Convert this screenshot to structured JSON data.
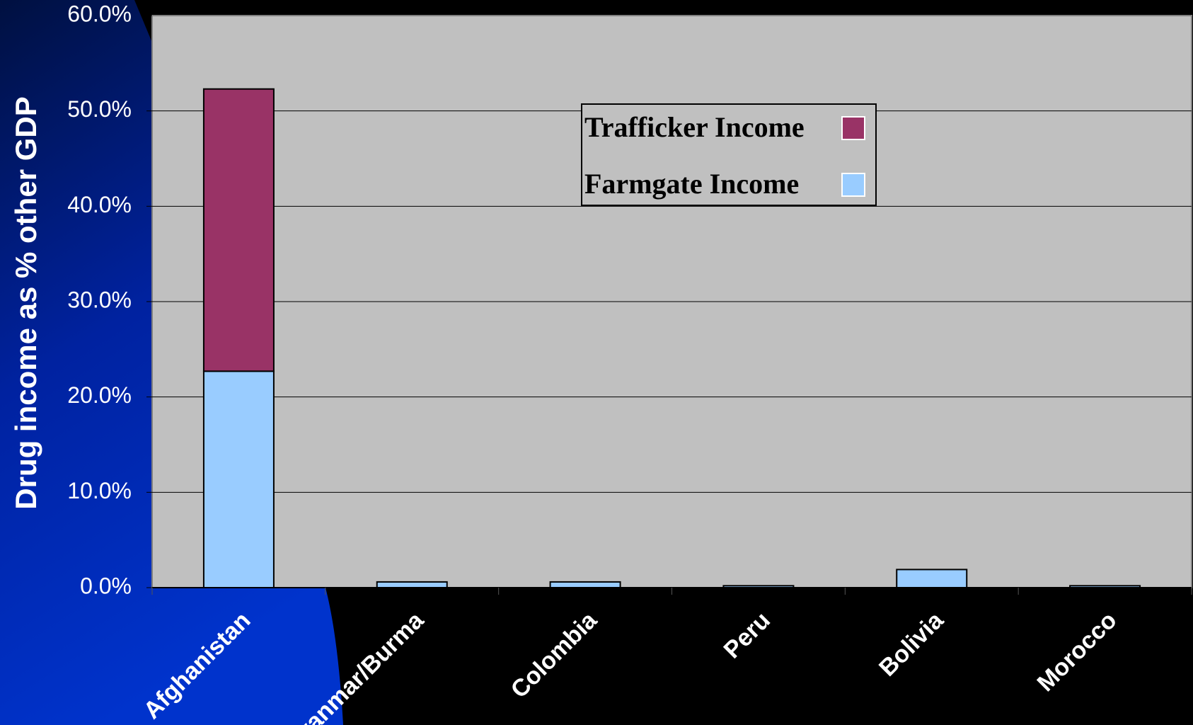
{
  "chart_data": {
    "type": "stacked_bar",
    "y_label": "Drug income as % other GDP",
    "categories": [
      "Afghanistan",
      "Myanmar/Burma",
      "Colombia",
      "Peru",
      "Bolivia",
      "Morocco"
    ],
    "series": [
      {
        "name": "Farmgate Income",
        "color": "#99ccff",
        "values": [
          22.7,
          0.6,
          0.6,
          0.2,
          1.9,
          0.2
        ]
      },
      {
        "name": "Trafficker Income",
        "color": "#993366",
        "values": [
          29.6,
          0,
          0,
          0,
          0,
          0
        ]
      }
    ],
    "ylim": [
      0,
      60
    ],
    "yticks": [
      {
        "value": 0,
        "label": "0.0%"
      },
      {
        "value": 10,
        "label": "10.0%"
      },
      {
        "value": 20,
        "label": "20.0%"
      },
      {
        "value": 30,
        "label": "30.0%"
      },
      {
        "value": 40,
        "label": "40.0%"
      },
      {
        "value": 50,
        "label": "50.0%"
      },
      {
        "value": 60,
        "label": "60.0%"
      }
    ],
    "grid": true,
    "legend": "top-center"
  }
}
